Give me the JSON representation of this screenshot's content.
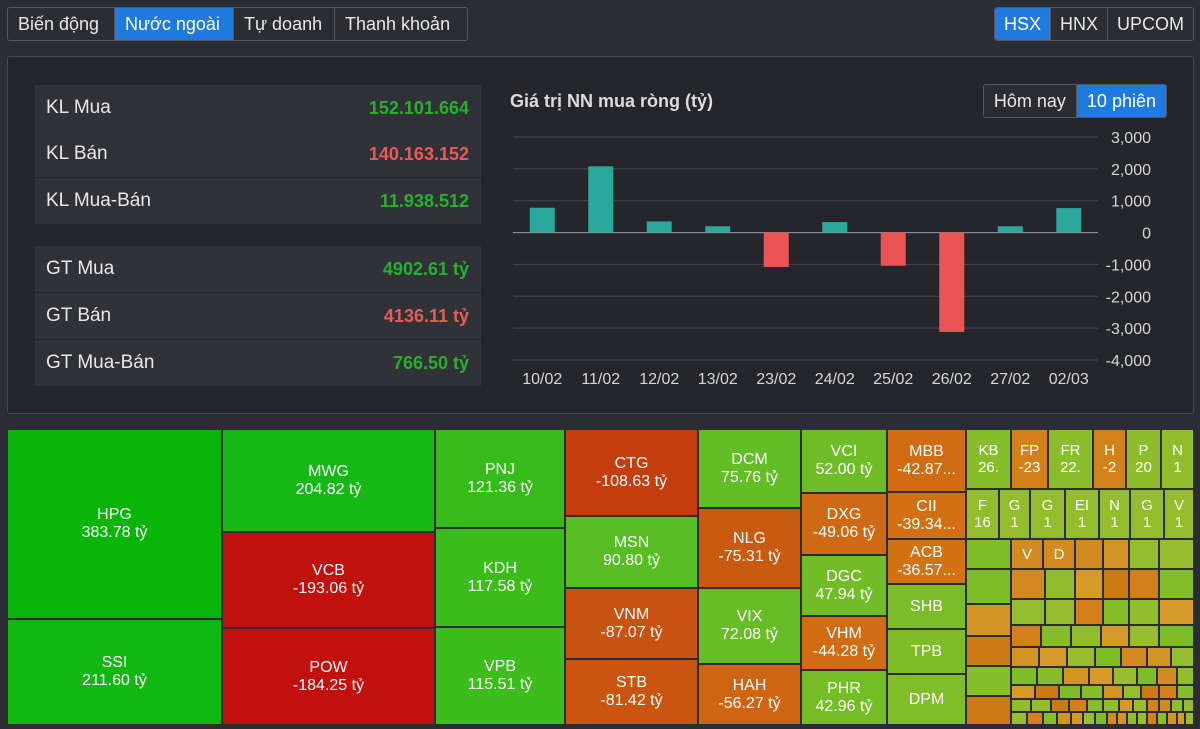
{
  "tabs": [
    "Biến động",
    "Nước ngoài",
    "Tự doanh",
    "Thanh khoản"
  ],
  "exchanges": [
    "HSX",
    "HNX",
    "UPCOM"
  ],
  "stats": [
    {
      "label": "KL Mua",
      "value": "152.101.664",
      "color": "green"
    },
    {
      "label": "KL Bán",
      "value": "140.163.152",
      "color": "red"
    },
    {
      "label": "KL Mua-Bán",
      "value": "11.938.512",
      "color": "green"
    },
    {
      "label": "GT Mua",
      "value": "4902.61 tỷ",
      "color": "green"
    },
    {
      "label": "GT Bán",
      "value": "4136.11 tỷ",
      "color": "red"
    },
    {
      "label": "GT Mua-Bán",
      "value": "766.50 tỷ",
      "color": "green"
    }
  ],
  "chart_toggle": [
    "Hôm nay",
    "10 phiên"
  ],
  "chart_data": {
    "type": "bar",
    "title": "Giá trị NN mua ròng (tỷ)",
    "categories": [
      "10/02",
      "11/02",
      "12/02",
      "13/02",
      "23/02",
      "24/02",
      "25/02",
      "26/02",
      "27/02",
      "02/03"
    ],
    "values": [
      780,
      2080,
      350,
      200,
      -1080,
      330,
      -1040,
      -3120,
      200,
      770
    ],
    "ylim": [
      -4000,
      3000
    ],
    "yticks": [
      "3,000",
      "2,000",
      "1,000",
      "0",
      "-1,000",
      "-2,000",
      "-3,000",
      "-4,000"
    ],
    "grid": true,
    "colors": {
      "positive": "#2aa89b",
      "negative": "#ec5354"
    }
  },
  "treemap": [
    {
      "symbol": "HPG",
      "value": "383.78 tỷ",
      "color": "#0ab50a"
    },
    {
      "symbol": "SSI",
      "value": "211.60 tỷ",
      "color": "#12b812"
    },
    {
      "symbol": "MWG",
      "value": "204.82 tỷ",
      "color": "#16b816"
    },
    {
      "symbol": "VCB",
      "value": "-193.06 tỷ",
      "color": "#c0110c"
    },
    {
      "symbol": "POW",
      "value": "-184.25 tỷ",
      "color": "#c2110c"
    },
    {
      "symbol": "PNJ",
      "value": "121.36 tỷ",
      "color": "#37bb1a"
    },
    {
      "symbol": "KDH",
      "value": "117.58 tỷ",
      "color": "#3bbc1b"
    },
    {
      "symbol": "VPB",
      "value": "115.51 tỷ",
      "color": "#3dbc1b"
    },
    {
      "symbol": "CTG",
      "value": "-108.63 tỷ",
      "color": "#c33d0d"
    },
    {
      "symbol": "MSN",
      "value": "90.80 tỷ",
      "color": "#56bd22"
    },
    {
      "symbol": "VNM",
      "value": "-87.07 tỷ",
      "color": "#c8520f"
    },
    {
      "symbol": "STB",
      "value": "-81.42 tỷ",
      "color": "#c95510"
    },
    {
      "symbol": "DCM",
      "value": "75.76 tỷ",
      "color": "#63bd24"
    },
    {
      "symbol": "NLG",
      "value": "-75.31 tỷ",
      "color": "#cb5a11"
    },
    {
      "symbol": "VIX",
      "value": "72.08 tỷ",
      "color": "#66bd25"
    },
    {
      "symbol": "HAH",
      "value": "-56.27 tỷ",
      "color": "#cf6512"
    },
    {
      "symbol": "VCI",
      "value": "52.00 tỷ",
      "color": "#6fbd26"
    },
    {
      "symbol": "DXG",
      "value": "-49.06 tỷ",
      "color": "#d06913"
    },
    {
      "symbol": "DGC",
      "value": "47.94 tỷ",
      "color": "#72bd27"
    },
    {
      "symbol": "VHM",
      "value": "-44.28 tỷ",
      "color": "#d16c13"
    },
    {
      "symbol": "PHR",
      "value": "42.96 tỷ",
      "color": "#75bd27"
    },
    {
      "symbol": "MBB",
      "value": "-42.87...",
      "color": "#d16c13"
    },
    {
      "symbol": "CII",
      "value": "-39.34...",
      "color": "#d27013"
    },
    {
      "symbol": "ACB",
      "value": "-36.57...",
      "color": "#d27213"
    },
    {
      "symbol": "SHB",
      "value": "",
      "color": "#7abd28"
    },
    {
      "symbol": "TPB",
      "value": "",
      "color": "#7cbd28"
    },
    {
      "symbol": "DPM",
      "value": "",
      "color": "#7fbd29"
    },
    {
      "symbol": "KB",
      "value": "26.",
      "color": "#86bd2a"
    },
    {
      "symbol": "FP",
      "value": "-23",
      "color": "#d3801a"
    },
    {
      "symbol": "FR",
      "value": "22.",
      "color": "#8abd2b"
    },
    {
      "symbol": "H",
      "value": "-2",
      "color": "#d3821b"
    },
    {
      "symbol": "P",
      "value": "20",
      "color": "#8dbd2b"
    },
    {
      "symbol": "N",
      "value": "1",
      "color": "#90bd2c"
    },
    {
      "symbol": "F",
      "value": "16",
      "color": "#92bd2c"
    },
    {
      "symbol": "G",
      "value": "1",
      "color": "#93bd2c"
    },
    {
      "symbol": "G",
      "value": "1",
      "color": "#93bd2c"
    },
    {
      "symbol": "EI",
      "value": "1",
      "color": "#93bd2c"
    },
    {
      "symbol": "N",
      "value": "1",
      "color": "#94bd2d"
    },
    {
      "symbol": "G",
      "value": "1",
      "color": "#94bd2d"
    },
    {
      "symbol": "V",
      "value": "1",
      "color": "#95bd2d"
    },
    {
      "symbol": "V",
      "value": "",
      "color": "#d38a20"
    },
    {
      "symbol": "D",
      "value": "",
      "color": "#d38a20"
    }
  ]
}
